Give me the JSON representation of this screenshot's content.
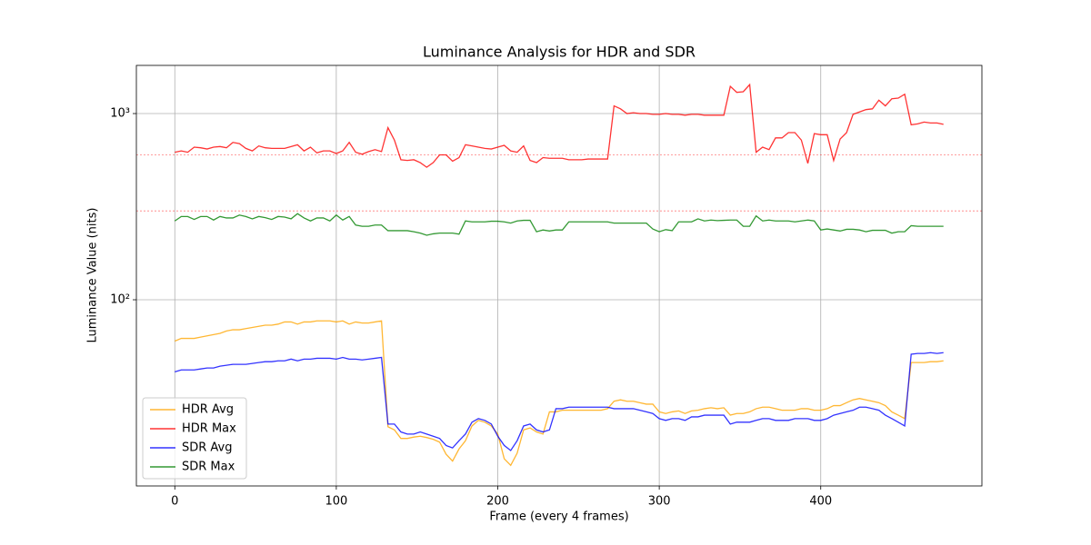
{
  "chart_data": {
    "type": "line",
    "title": "Luminance Analysis for HDR and SDR",
    "x_label": "Frame (every 4 frames)",
    "y_label": "Luminance Value (nits)",
    "yscale": "log",
    "grid": true,
    "legend": "lower left",
    "xlim": [
      -23.8,
      499.8
    ],
    "xticks": [
      0,
      100,
      200,
      300,
      400
    ],
    "ylim": [
      10,
      1814
    ],
    "yticks": [
      {
        "value": 100,
        "label": "10²"
      },
      {
        "value": 1000,
        "label": "10³"
      }
    ],
    "reference_lines": [
      {
        "value": 600,
        "color": "#ff0000"
      },
      {
        "value": 300,
        "color": "#ff0000"
      }
    ],
    "x": [
      0,
      4,
      8,
      12,
      16,
      20,
      24,
      28,
      32,
      36,
      40,
      44,
      48,
      52,
      56,
      60,
      64,
      68,
      72,
      76,
      80,
      84,
      88,
      92,
      96,
      100,
      104,
      108,
      112,
      116,
      120,
      124,
      128,
      132,
      136,
      140,
      144,
      148,
      152,
      156,
      160,
      164,
      168,
      172,
      176,
      180,
      184,
      188,
      192,
      196,
      200,
      204,
      208,
      212,
      216,
      220,
      224,
      228,
      232,
      236,
      240,
      244,
      248,
      252,
      256,
      260,
      264,
      268,
      272,
      276,
      280,
      284,
      288,
      292,
      296,
      300,
      304,
      308,
      312,
      316,
      320,
      324,
      328,
      332,
      336,
      340,
      344,
      348,
      352,
      356,
      360,
      364,
      368,
      372,
      376,
      380,
      384,
      388,
      392,
      396,
      400,
      404,
      408,
      412,
      416,
      420,
      424,
      428,
      432,
      436,
      440,
      444,
      448,
      452,
      456,
      460,
      464,
      468,
      472,
      476
    ],
    "series": [
      {
        "name": "HDR Avg",
        "color": "#ffa500",
        "values": [
          60,
          62,
          62,
          62,
          63,
          64,
          65,
          66,
          68,
          69,
          69,
          70,
          71,
          72,
          73,
          73,
          74,
          76,
          76,
          74,
          76,
          76,
          77,
          77,
          77,
          76,
          77,
          74,
          76,
          75,
          75,
          76,
          77,
          20.8,
          20,
          18,
          18,
          18.3,
          18.5,
          18.2,
          17.8,
          17.2,
          14.8,
          13.6,
          15.8,
          17.5,
          21,
          22.5,
          22,
          21,
          19,
          14,
          12.9,
          15,
          20,
          20.5,
          19.5,
          19,
          25,
          25,
          25.5,
          25.5,
          25.5,
          25.5,
          25.5,
          25.5,
          25.5,
          26,
          28.5,
          29,
          28.5,
          28.5,
          28,
          27.5,
          27.5,
          25,
          24.5,
          25,
          25.3,
          24.5,
          25.3,
          25.5,
          26,
          26.3,
          26,
          26.3,
          24,
          24.5,
          24.5,
          25,
          26,
          26.5,
          26.5,
          26,
          25.5,
          25.5,
          25.5,
          26,
          26,
          25.5,
          25.5,
          26,
          27,
          27,
          28,
          29,
          29.5,
          29,
          28.5,
          28,
          27,
          25,
          24,
          23,
          46,
          46,
          46,
          46.5,
          46.5,
          47
        ]
      },
      {
        "name": "HDR Max",
        "color": "#ff0000",
        "values": [
          620,
          630,
          620,
          660,
          655,
          645,
          660,
          665,
          655,
          700,
          690,
          650,
          630,
          670,
          655,
          650,
          650,
          650,
          665,
          680,
          630,
          660,
          615,
          630,
          630,
          610,
          630,
          700,
          620,
          605,
          625,
          640,
          625,
          840,
          720,
          565,
          560,
          565,
          545,
          515,
          545,
          600,
          600,
          555,
          580,
          680,
          670,
          660,
          650,
          645,
          660,
          675,
          630,
          620,
          670,
          560,
          545,
          580,
          575,
          575,
          575,
          565,
          565,
          565,
          570,
          570,
          570,
          570,
          1100,
          1060,
          1000,
          1010,
          1000,
          1000,
          990,
          990,
          1000,
          990,
          990,
          980,
          990,
          990,
          980,
          980,
          980,
          980,
          1400,
          1300,
          1310,
          1430,
          620,
          660,
          640,
          740,
          740,
          790,
          790,
          720,
          540,
          780,
          770,
          770,
          560,
          730,
          790,
          990,
          1020,
          1050,
          1060,
          1180,
          1100,
          1200,
          1210,
          1270,
          870,
          880,
          900,
          890,
          890,
          875
        ]
      },
      {
        "name": "SDR Avg",
        "color": "#0000ff",
        "values": [
          41,
          42,
          42,
          42,
          42.5,
          43,
          43,
          44,
          44.5,
          45,
          45,
          45,
          45.5,
          46,
          46.5,
          46.5,
          47,
          47,
          48,
          47,
          48,
          48,
          48.5,
          48.5,
          48.5,
          48,
          49,
          48,
          48,
          47.5,
          48,
          48.5,
          49,
          21.5,
          21.5,
          19.5,
          19,
          19,
          19.5,
          19,
          18.5,
          18,
          16.5,
          16,
          17.5,
          19,
          22,
          23,
          22.5,
          21.5,
          18.5,
          16.5,
          15.5,
          17.5,
          21,
          21.5,
          20,
          19.5,
          20,
          26,
          26,
          26.5,
          26.5,
          26.5,
          26.5,
          26.5,
          26.5,
          26.5,
          26,
          26,
          26,
          26,
          25.5,
          25,
          24.5,
          23,
          22.5,
          23,
          23,
          22.5,
          23.5,
          23.5,
          24,
          24,
          24,
          24,
          21.5,
          22,
          22,
          22,
          22.5,
          23,
          23,
          22.5,
          22.5,
          22.5,
          23,
          23,
          23,
          22.5,
          22.5,
          23,
          24,
          24.5,
          25,
          25.5,
          26.5,
          26.5,
          26,
          25.5,
          24,
          23,
          22,
          21,
          51,
          51.5,
          51.5,
          52,
          51.5,
          52
        ]
      },
      {
        "name": "SDR Max",
        "color": "#008000",
        "values": [
          265,
          280,
          280,
          270,
          280,
          280,
          268,
          280,
          275,
          275,
          285,
          280,
          272,
          280,
          276,
          270,
          280,
          278,
          272,
          290,
          275,
          265,
          275,
          275,
          265,
          285,
          268,
          280,
          252,
          248,
          248,
          252,
          252,
          235,
          235,
          235,
          235,
          232,
          228,
          222,
          226,
          228,
          228,
          228,
          225,
          265,
          262,
          262,
          262,
          264,
          264,
          262,
          258,
          265,
          267,
          267,
          232,
          237,
          234,
          237,
          237,
          262,
          262,
          262,
          262,
          262,
          262,
          262,
          258,
          258,
          258,
          258,
          258,
          258,
          240,
          232,
          238,
          235,
          262,
          262,
          262,
          272,
          265,
          268,
          266,
          267,
          268,
          268,
          248,
          248,
          282,
          265,
          268,
          265,
          265,
          265,
          262,
          265,
          268,
          265,
          237,
          240,
          237,
          234,
          239,
          239,
          237,
          232,
          236,
          236,
          236,
          228,
          232,
          232,
          250,
          248,
          248,
          248,
          248,
          248
        ]
      }
    ]
  }
}
